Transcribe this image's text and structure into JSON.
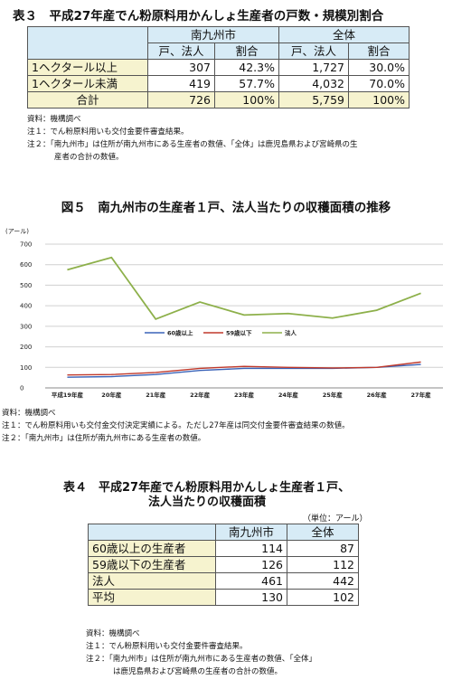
{
  "table3": {
    "title": "表３　平成27年産でん粉原料用かんしょ生産者の戸数・規模別割合",
    "group_headers": [
      "南九州市",
      "全体"
    ],
    "sub_headers": [
      "戸、法人",
      "割合",
      "戸、法人",
      "割合"
    ],
    "rows": [
      {
        "label": "1ヘクタール以上",
        "cells": [
          "307",
          "42.3%",
          "1,727",
          "30.0%"
        ]
      },
      {
        "label": "1ヘクタール未満",
        "cells": [
          "419",
          "57.7%",
          "4,032",
          "70.0%"
        ]
      },
      {
        "label": "合計",
        "cells": [
          "726",
          "100%",
          "5,759",
          "100%"
        ]
      }
    ],
    "notes": [
      "資料：機構調べ",
      "注１：でん粉原料用いも交付金要件審査結果。",
      "注２：「南九州市」は住所が南九州市にある生産者の数値、「全体」は鹿児島県および宮崎県の生",
      "産者の合計の数値。"
    ]
  },
  "figure5": {
    "title": "図５　南九州市の生産者１戸、法人当たりの収穫面積の推移",
    "notes": [
      "資料：機構調べ",
      "注１：でん粉原料用いも交付金交付決定実績による。ただし27年産は同交付金要件審査結果の数値。",
      "注２：「南九州市」は住所が南九州市にある生産者の数値。"
    ]
  },
  "chart_data": {
    "type": "line",
    "title": "",
    "xlabel": "",
    "ylabel": "(アール)",
    "ylim": [
      0,
      700
    ],
    "yticks": [
      "0",
      "100",
      "200",
      "300",
      "400",
      "500",
      "600",
      "700"
    ],
    "categories": [
      "平成19年産",
      "20年産",
      "21年産",
      "22年産",
      "23年産",
      "24年産",
      "25年産",
      "26年産",
      "27年産"
    ],
    "series": [
      {
        "name": "60歳以上",
        "color": "#3a63b8",
        "values": [
          52,
          55,
          65,
          85,
          95,
          95,
          95,
          100,
          114
        ]
      },
      {
        "name": "59歳以下",
        "color": "#c0392b",
        "values": [
          63,
          65,
          75,
          95,
          105,
          100,
          97,
          100,
          126
        ]
      },
      {
        "name": "法人",
        "color": "#8db04a",
        "values": [
          575,
          635,
          335,
          418,
          355,
          362,
          340,
          378,
          461
        ]
      }
    ],
    "grid": true,
    "legend": "bottom"
  },
  "table4": {
    "title_line1": "表４　平成27年産でん粉原料用かんしょ生産者１戸、",
    "title_line2": "法人当たりの収穫面積",
    "unit": "（単位：アール）",
    "headers": [
      "南九州市",
      "全体"
    ],
    "rows": [
      {
        "label": "60歳以上の生産者",
        "cells": [
          "114",
          "87"
        ]
      },
      {
        "label": "59歳以下の生産者",
        "cells": [
          "126",
          "112"
        ]
      },
      {
        "label": "法人",
        "cells": [
          "461",
          "442"
        ]
      },
      {
        "label": "平均",
        "cells": [
          "130",
          "102"
        ]
      }
    ],
    "notes": [
      "資料：機構調べ",
      "注１：でん粉原料用いも交付金要件審査結果。",
      "注２：「南九州市」は住所が南九州市にある生産者の数値、「全体」",
      "は鹿児島県および宮崎県の生産者の合計の数値。"
    ]
  }
}
